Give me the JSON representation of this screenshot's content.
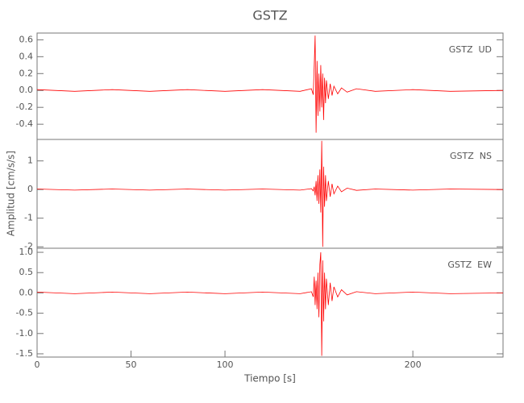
{
  "chart_data": {
    "type": "line",
    "title": "GSTZ",
    "xlabel": "Tiempo [s]",
    "ylabel": "Amplitud [cm/s/s]",
    "color": "#ff0000",
    "xlim": [
      0,
      248
    ],
    "xticks": [
      0,
      50,
      100,
      200
    ],
    "x": [
      0,
      20,
      40,
      60,
      80,
      100,
      120,
      140,
      146,
      147,
      147.5,
      148,
      148.5,
      149,
      149.5,
      150,
      150.5,
      151,
      151.5,
      152,
      152.5,
      153,
      153.5,
      154,
      155,
      156,
      157,
      158,
      160,
      162,
      165,
      170,
      180,
      200,
      220,
      248
    ],
    "panels": [
      {
        "annotation": "GSTZ  UD",
        "ylim": [
          -0.58,
          0.68
        ],
        "yticks": [
          -0.4,
          -0.2,
          {
            "value": 0,
            "label": "0.0"
          },
          0.2,
          0.4,
          0.6
        ],
        "values": [
          0.01,
          -0.01,
          0.01,
          -0.01,
          0.01,
          -0.01,
          0.01,
          -0.01,
          0.02,
          -0.05,
          0.3,
          0.65,
          -0.5,
          0.35,
          -0.3,
          0.2,
          -0.25,
          0.3,
          -0.2,
          0.2,
          -0.35,
          0.15,
          -0.15,
          0.12,
          -0.1,
          0.08,
          -0.06,
          0.05,
          -0.04,
          0.03,
          -0.02,
          0.02,
          -0.01,
          0.01,
          -0.01,
          0
        ]
      },
      {
        "annotation": "GSTZ  NS",
        "ylim": [
          -2.05,
          1.75
        ],
        "yticks": [
          -2,
          -1,
          0,
          1
        ],
        "values": [
          0.02,
          -0.02,
          0.02,
          -0.02,
          0.02,
          -0.02,
          0.02,
          -0.02,
          0.03,
          -0.05,
          0.1,
          -0.2,
          0.3,
          -0.4,
          0.5,
          -0.5,
          0.7,
          -0.8,
          1.7,
          -2.0,
          0.8,
          -0.6,
          0.5,
          -0.4,
          0.3,
          -0.25,
          0.2,
          -0.15,
          0.12,
          -0.08,
          0.05,
          -0.03,
          0.02,
          -0.02,
          0.02,
          0
        ]
      },
      {
        "annotation": "GSTZ  EW",
        "ylim": [
          -1.58,
          1.1
        ],
        "yticks": [
          -1.5,
          {
            "value": -1,
            "label": "-1.0"
          },
          -0.5,
          {
            "value": 0,
            "label": "0.0"
          },
          0.5,
          {
            "value": 1,
            "label": "1.0"
          }
        ],
        "values": [
          0.02,
          -0.02,
          0.02,
          -0.02,
          0.02,
          -0.02,
          0.02,
          -0.02,
          0.03,
          -0.1,
          0.4,
          -0.3,
          0.3,
          -0.4,
          0.5,
          -0.6,
          0.7,
          1.0,
          -1.55,
          0.8,
          -0.7,
          0.5,
          -0.4,
          0.35,
          -0.3,
          0.25,
          -0.2,
          0.15,
          -0.1,
          0.08,
          -0.05,
          0.03,
          -0.02,
          0.02,
          -0.02,
          0
        ]
      }
    ]
  }
}
